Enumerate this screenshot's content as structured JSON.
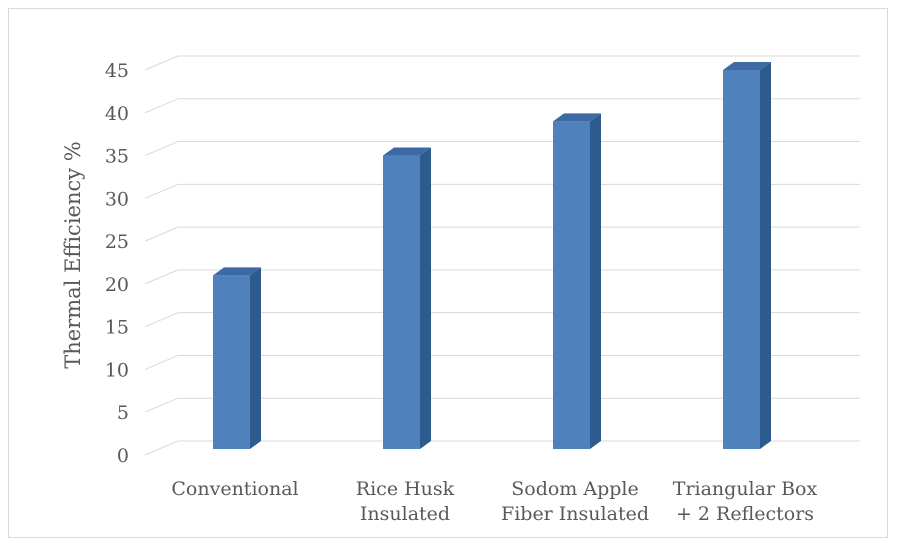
{
  "chart_data": {
    "type": "bar",
    "style": "3d-clustered-column",
    "categories": [
      [
        "Conventional"
      ],
      [
        "Rice Husk",
        "Insulated"
      ],
      [
        "Sodom Apple",
        "Fiber Insulated"
      ],
      [
        "Triangular Box",
        "+ 2 Reflectors"
      ]
    ],
    "values": [
      21,
      35,
      39,
      45
    ],
    "title": "",
    "xlabel": "",
    "ylabel": "Thermal Efficiency %",
    "ylim": [
      0,
      45
    ],
    "yticks": [
      0,
      5,
      10,
      15,
      20,
      25,
      30,
      35,
      40,
      45
    ],
    "grid": true,
    "legend": "none",
    "colors": {
      "bar_front": "#4f81bd",
      "bar_side": "#2e5b8e",
      "bar_top": "#3d6aa5",
      "grid": "#d9d9d9",
      "text": "#595959"
    }
  }
}
